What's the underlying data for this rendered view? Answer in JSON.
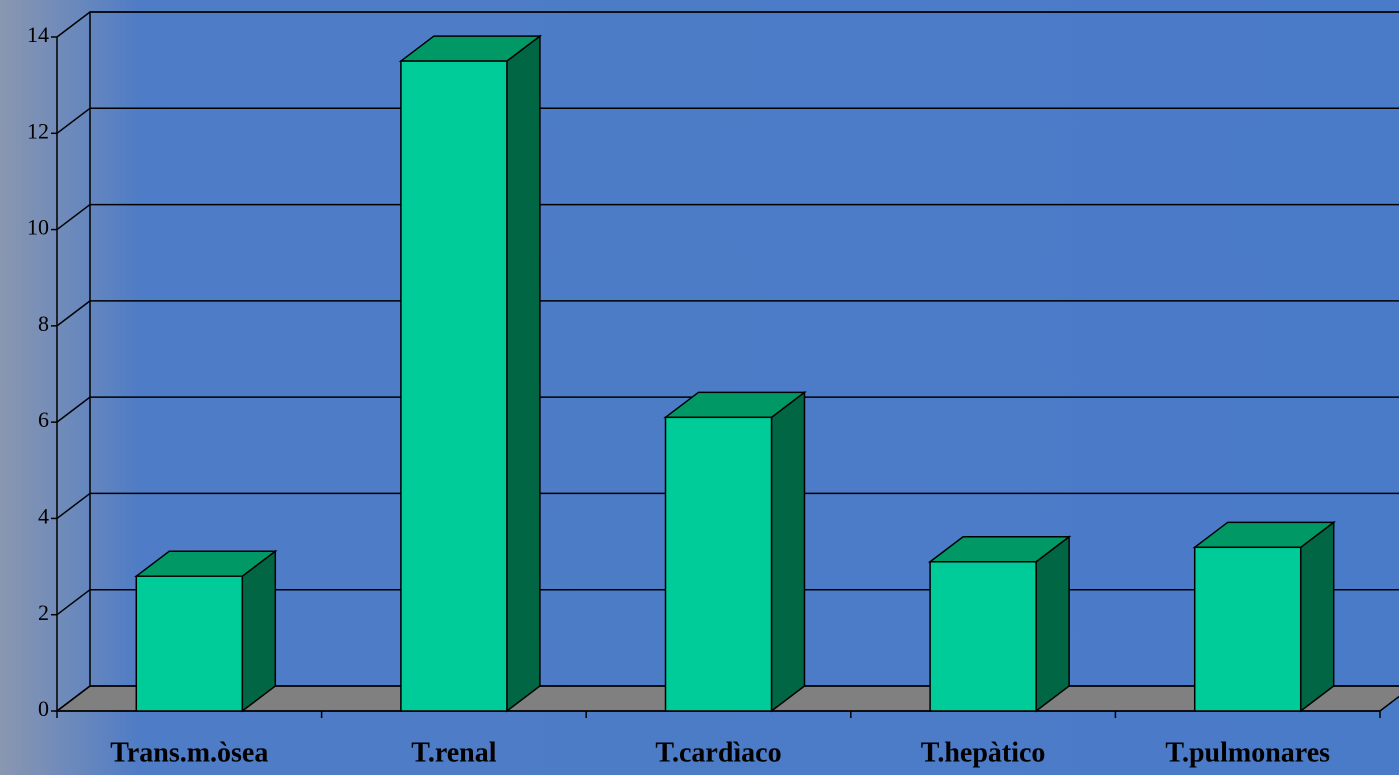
{
  "chart_data": {
    "type": "bar3d",
    "categories": [
      "Trans.m.òsea",
      "T.renal",
      "T.cardìaco",
      "T.hepàtico",
      "T.pulmonares"
    ],
    "values": [
      2.8,
      13.5,
      6.1,
      3.1,
      3.4
    ],
    "color": "#00cc99",
    "ylim": [
      0,
      14
    ],
    "yticks": [
      0,
      2,
      4,
      6,
      8,
      10,
      12,
      14
    ],
    "grid": true
  }
}
